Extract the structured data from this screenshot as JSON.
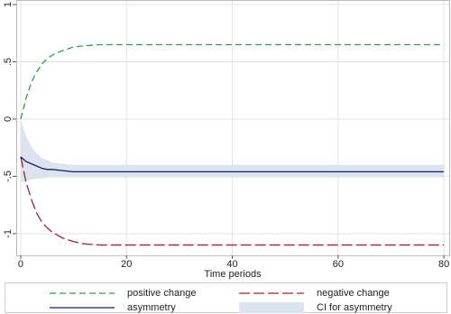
{
  "chart_data": {
    "type": "line",
    "x_label": "Time periods",
    "x": [
      0,
      1,
      2,
      3,
      4,
      5,
      6,
      8,
      10,
      12,
      15,
      20,
      40,
      60,
      80
    ],
    "series": [
      {
        "name": "positive change",
        "color": "#2e9e4a",
        "dash": "7,4",
        "values": [
          0,
          0.18,
          0.32,
          0.41,
          0.48,
          0.53,
          0.56,
          0.6,
          0.63,
          0.64,
          0.65,
          0.65,
          0.65,
          0.65,
          0.65
        ]
      },
      {
        "name": "negative change",
        "color": "#a0203a",
        "dash": "12,4",
        "values": [
          -0.33,
          -0.55,
          -0.7,
          -0.82,
          -0.9,
          -0.95,
          -0.99,
          -1.04,
          -1.07,
          -1.09,
          -1.1,
          -1.1,
          -1.1,
          -1.1,
          -1.1
        ]
      },
      {
        "name": "asymmetry",
        "color": "#1a1a6e",
        "dash": "none",
        "values": [
          -0.33,
          -0.37,
          -0.39,
          -0.41,
          -0.43,
          -0.44,
          -0.44,
          -0.45,
          -0.46,
          -0.46,
          -0.46,
          -0.46,
          -0.46,
          -0.46,
          -0.46
        ]
      }
    ],
    "ci": {
      "name": "CI for asymmetry",
      "color": "#dbe3ef",
      "upper": [
        0,
        -0.15,
        -0.24,
        -0.3,
        -0.34,
        -0.36,
        -0.38,
        -0.39,
        -0.4,
        -0.4,
        -0.4,
        -0.4,
        -0.4,
        -0.4,
        -0.4
      ],
      "lower": [
        -0.56,
        -0.54,
        -0.53,
        -0.52,
        -0.52,
        -0.51,
        -0.51,
        -0.51,
        -0.51,
        -0.51,
        -0.51,
        -0.51,
        -0.51,
        -0.51,
        -0.51
      ]
    },
    "xlim": [
      -0.85,
      81
    ],
    "ylim": [
      -1.19,
      1.04
    ],
    "xticks": [
      0,
      20,
      40,
      60,
      80
    ],
    "yticks": [
      -1,
      {
        "value": -0.5,
        "label": "-.5"
      },
      0,
      {
        "value": 0.5,
        "label": ".5"
      },
      1
    ],
    "grid": true
  }
}
